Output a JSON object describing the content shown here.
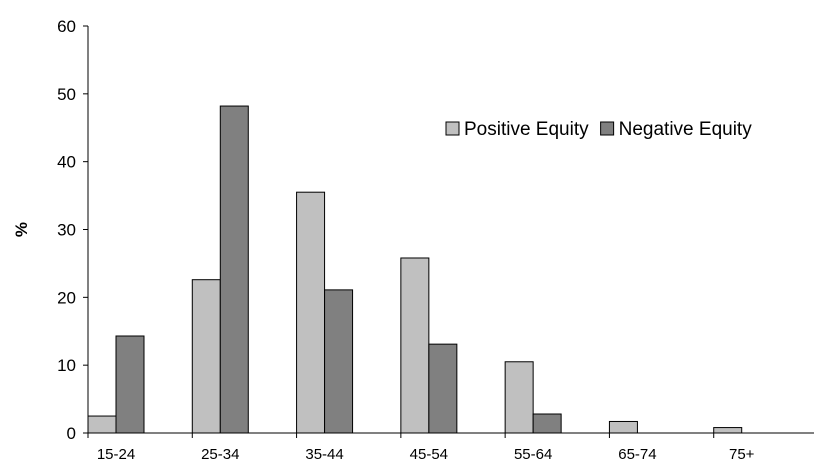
{
  "chart_data": {
    "type": "bar",
    "categories": [
      "15-24",
      "25-34",
      "35-44",
      "45-54",
      "55-64",
      "65-74",
      "75+"
    ],
    "series": [
      {
        "name": "Positive Equity",
        "color": "#c0c0c0",
        "values": [
          2.5,
          22.6,
          35.5,
          25.8,
          10.5,
          1.7,
          0.8
        ]
      },
      {
        "name": "Negative Equity",
        "color": "#808080",
        "values": [
          14.3,
          48.2,
          21.1,
          13.1,
          2.8,
          0,
          0
        ]
      }
    ],
    "title": "",
    "xlabel": "",
    "ylabel": "%",
    "ylim": [
      0,
      60
    ],
    "yticks": [
      0,
      10,
      20,
      30,
      40,
      50,
      60
    ],
    "grid": false,
    "legend_position": "top-right"
  }
}
